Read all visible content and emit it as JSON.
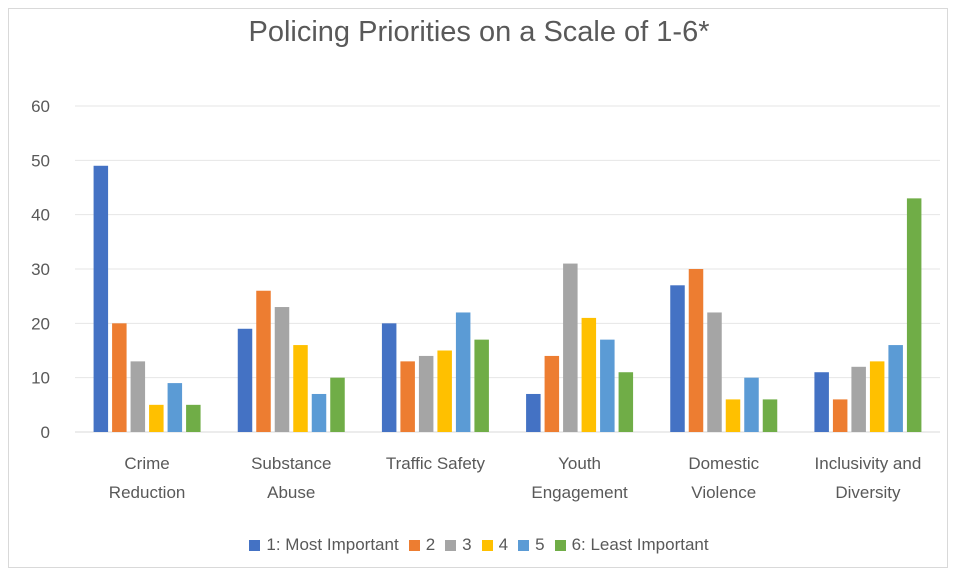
{
  "chart_data": {
    "type": "bar",
    "title": "Policing Priorities on a Scale of 1-6*",
    "categories": [
      [
        "Crime",
        "Reduction"
      ],
      [
        "Substance",
        "Abuse"
      ],
      [
        "Traffic Safety"
      ],
      [
        "Youth",
        "Engagement"
      ],
      [
        "Domestic",
        "Violence"
      ],
      [
        "Inclusivity and",
        "Diversity"
      ]
    ],
    "ylim": [
      0,
      60
    ],
    "yticks": [
      0,
      10,
      20,
      30,
      40,
      50,
      60
    ],
    "grid": true,
    "legend_position": "bottom",
    "series": [
      {
        "name": "1: Most Important",
        "color": "#4472c4",
        "values": [
          49,
          19,
          20,
          7,
          27,
          11
        ]
      },
      {
        "name": "2",
        "color": "#ed7d31",
        "values": [
          20,
          26,
          13,
          14,
          30,
          6
        ]
      },
      {
        "name": "3",
        "color": "#a5a5a5",
        "values": [
          13,
          23,
          14,
          31,
          22,
          12
        ]
      },
      {
        "name": "4",
        "color": "#ffc000",
        "values": [
          5,
          16,
          15,
          21,
          6,
          13
        ]
      },
      {
        "name": "5",
        "color": "#5b9bd5",
        "values": [
          9,
          7,
          22,
          17,
          10,
          16
        ]
      },
      {
        "name": "6: Least Important",
        "color": "#70ad47",
        "values": [
          5,
          10,
          17,
          11,
          6,
          43
        ]
      }
    ]
  }
}
